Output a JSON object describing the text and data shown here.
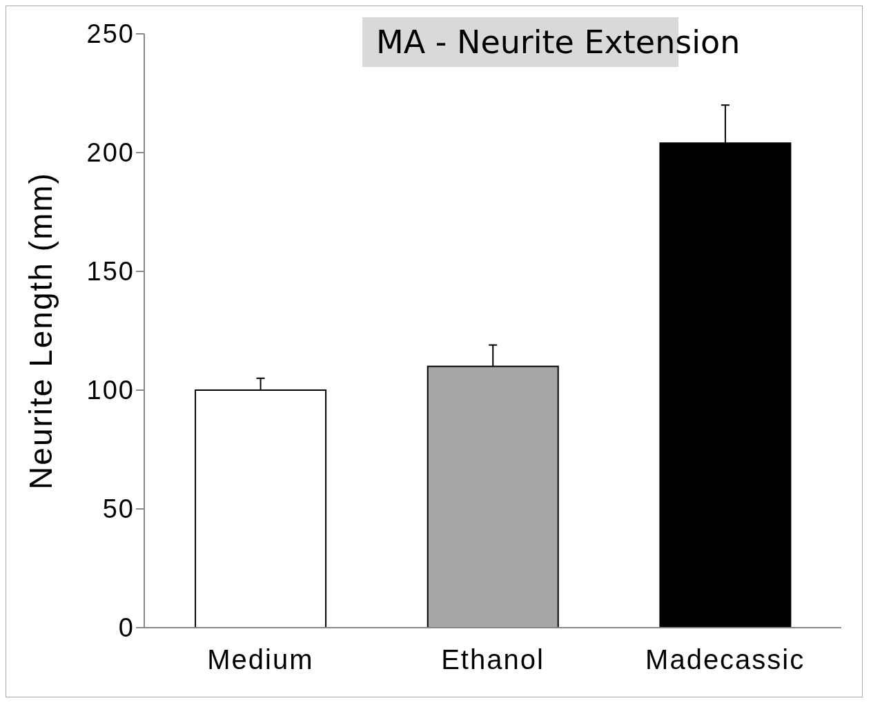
{
  "chart_data": {
    "type": "bar",
    "title": "MA - Neurite Extension",
    "ylabel": "Neurite Length (mm)",
    "categories": [
      "Medium",
      "Ethanol",
      "Madecassic"
    ],
    "values": [
      100,
      110,
      204
    ],
    "colors": [
      "#ffffff",
      "#a6a6a6",
      "#000000"
    ],
    "errors": [
      [
        100,
        105
      ],
      [
        110,
        119
      ],
      [
        204,
        220
      ]
    ],
    "ylim": [
      0,
      250
    ],
    "yticks": [
      0,
      50,
      100,
      150,
      200,
      250
    ],
    "grid": false,
    "legend": false
  }
}
